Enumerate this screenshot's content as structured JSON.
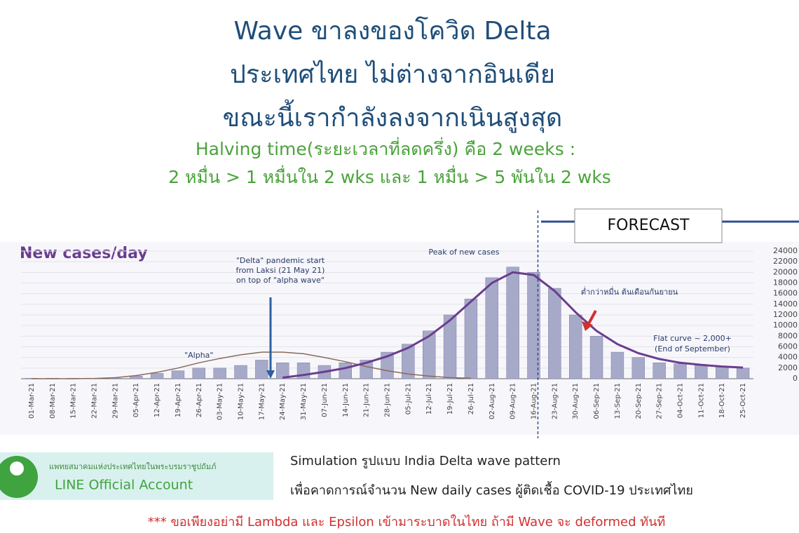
{
  "header": {
    "lines": [
      "Wave ขาลงของโควิด Delta",
      "ประเทศไทย ไม่ต่างจากอินเดีย",
      "ขณะนี้เรากำลังลงจากเนินสูงสุด"
    ],
    "green_lines": [
      "Halving time(ระยะเวลาที่ลดครึ่ง) คือ 2 weeks :",
      "2 หมื่น > 1 หมื่นใน 2 wks และ 1 หมื่น > 5 พันใน 2 wks"
    ]
  },
  "chart_data": {
    "type": "bar",
    "title": "New cases/day",
    "forecast_label": "FORECAST",
    "categories": [
      "01-Mar-21",
      "08-Mar-21",
      "15-Mar-21",
      "22-Mar-21",
      "29-Mar-21",
      "05-Apr-21",
      "12-Apr-21",
      "19-Apr-21",
      "26-Apr-21",
      "03-May-21",
      "10-May-21",
      "17-May-21",
      "24-May-21",
      "31-May-21",
      "07-Jun-21",
      "14-Jun-21",
      "21-Jun-21",
      "28-Jun-21",
      "05-Jul-21",
      "12-Jul-21",
      "19-Jul-21",
      "26-Jul-21",
      "02-Aug-21",
      "09-Aug-21",
      "16-Aug-21",
      "23-Aug-21",
      "30-Aug-21",
      "06-Sep-21",
      "13-Sep-21",
      "20-Sep-21",
      "27-Sep-21",
      "04-Oct-21",
      "11-Oct-21",
      "18-Oct-21",
      "25-Oct-21"
    ],
    "values": [
      100,
      100,
      100,
      100,
      100,
      500,
      1000,
      1500,
      2000,
      2000,
      2500,
      3500,
      3000,
      3000,
      2500,
      3000,
      3500,
      5000,
      6500,
      9000,
      12000,
      15000,
      19000,
      21000,
      20000,
      17000,
      12000,
      8000,
      5000,
      4000,
      3000,
      2800,
      2500,
      2200,
      2000
    ],
    "color": "#a7a9c8",
    "series": [
      {
        "name": "\"Alpha\"",
        "color": "#8a6a5a",
        "values": [
          0,
          0,
          0,
          50,
          200,
          600,
          1200,
          2000,
          3000,
          3800,
          4500,
          5000,
          5000,
          4700,
          4000,
          3200,
          2300,
          1500,
          900,
          500,
          200,
          100,
          null,
          null,
          null,
          null,
          null,
          null,
          null,
          null,
          null,
          null,
          null,
          null,
          null
        ]
      },
      {
        "color": "#6a3d8f",
        "values": [
          null,
          null,
          null,
          null,
          null,
          null,
          null,
          null,
          null,
          null,
          null,
          null,
          200,
          700,
          1300,
          2000,
          3000,
          4200,
          5800,
          8000,
          11000,
          14500,
          18000,
          20000,
          19500,
          16500,
          12500,
          9000,
          6500,
          4800,
          3700,
          3000,
          2600,
          2300,
          2100
        ]
      }
    ],
    "ylim": [
      0,
      24000
    ],
    "yticks": [
      0,
      2000,
      4000,
      6000,
      8000,
      10000,
      12000,
      14000,
      16000,
      18000,
      20000,
      22000,
      24000
    ],
    "grid": true,
    "annotations": [
      "\"Delta\" pandemic start",
      "from Laksi (21 May 21)",
      "on top of \"alpha wave\"",
      "Peak of new cases",
      "ต่ำกว่าหมื่น ต้นเดือนกันยายน",
      "Flat curve ~ 2,000+",
      "(End of September)"
    ]
  },
  "footer": {
    "org": "แพทยสมาคมแห่งประเทศไทยในพระบรมราชูปถัมภ์",
    "line_account": "LINE Official Account",
    "note1": "Simulation รูปแบบ India Delta wave pattern",
    "note2": "เพื่อคาดการณ์จำนวน New daily cases ผู้ติดเชื้อ COVID-19 ประเทศไทย",
    "warning": "*** ขอเพียงอย่ามี Lambda และ Epsilon เข้ามาระบาดในไทย ถ้ามี Wave จะ deformed ทันที"
  }
}
